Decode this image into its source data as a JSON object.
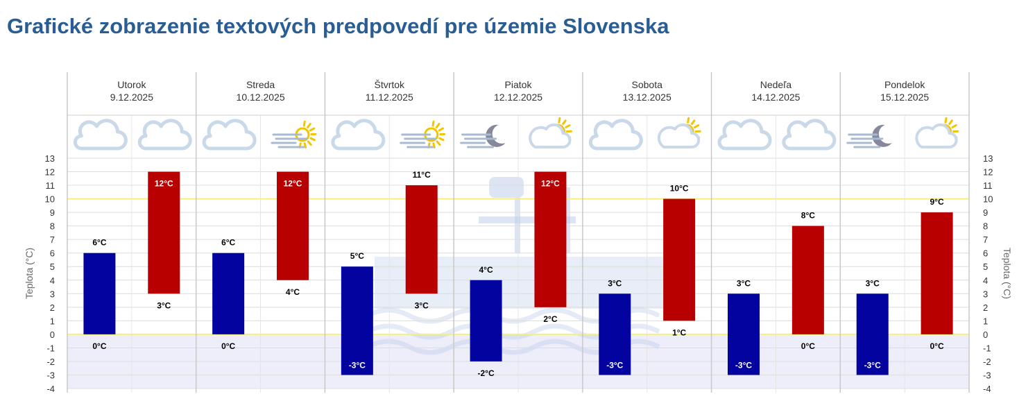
{
  "page": {
    "title": "Grafické zobrazenie textových predpovedí pre územie Slovenska"
  },
  "colors": {
    "title": "#2a5d93",
    "min_bar": "#0303a0",
    "max_bar": "#b80000",
    "freezing_band": "#eeeefb",
    "highlight_line": "#f5f07a",
    "grid": "#dcdcdc",
    "watermark": "#b4c6e6"
  },
  "days": [
    {
      "name": "Utorok",
      "date": "9.12.2025",
      "icons": [
        "cloud-icon",
        "cloud-icon"
      ]
    },
    {
      "name": "Streda",
      "date": "10.12.2025",
      "icons": [
        "cloud-icon",
        "fog-sun-icon"
      ]
    },
    {
      "name": "Štvrtok",
      "date": "11.12.2025",
      "icons": [
        "cloud-icon",
        "fog-sun-icon"
      ]
    },
    {
      "name": "Piatok",
      "date": "12.12.2025",
      "icons": [
        "fog-moon-icon",
        "sun-cloud-icon"
      ]
    },
    {
      "name": "Sobota",
      "date": "13.12.2025",
      "icons": [
        "cloud-icon",
        "sun-cloud-icon"
      ]
    },
    {
      "name": "Nedeľa",
      "date": "14.12.2025",
      "icons": [
        "cloud-icon",
        "cloud-icon"
      ]
    },
    {
      "name": "Pondelok",
      "date": "15.12.2025",
      "icons": [
        "fog-moon-icon",
        "sun-cloud-icon"
      ]
    }
  ],
  "chart_data": {
    "type": "bar",
    "ylabel": "Teplota (°C)",
    "unit": "°C",
    "ylim": [
      -4,
      13
    ],
    "yticks": [
      13,
      12,
      11,
      10,
      9,
      8,
      7,
      6,
      5,
      4,
      3,
      2,
      1,
      0,
      -1,
      -2,
      -3,
      -4
    ],
    "highlight_lines": [
      10,
      0
    ],
    "grid": true,
    "series": [
      {
        "color": "#0303a0",
        "ranges": [
          [
            0,
            6
          ],
          [
            0,
            6
          ],
          [
            -3,
            5
          ],
          [
            -2,
            4
          ],
          [
            -3,
            3
          ],
          [
            -3,
            3
          ],
          [
            -3,
            3
          ]
        ]
      },
      {
        "color": "#b80000",
        "ranges": [
          [
            3,
            12
          ],
          [
            4,
            12
          ],
          [
            3,
            11
          ],
          [
            2,
            12
          ],
          [
            1,
            10
          ],
          [
            0,
            8
          ],
          [
            0,
            9
          ]
        ]
      }
    ]
  }
}
